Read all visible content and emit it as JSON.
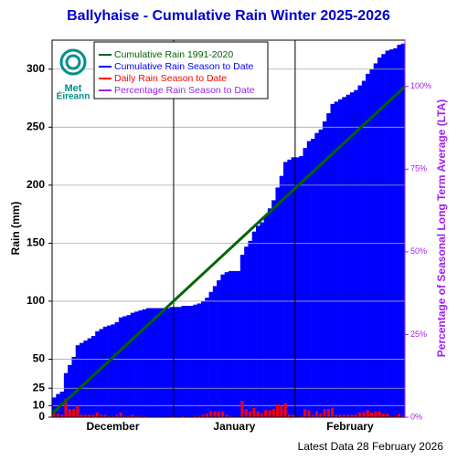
{
  "chart_data": {
    "type": "bar",
    "title": "Ballyhaise - Cumulative Rain Winter 2025-2026",
    "y_label": "Rain (mm)",
    "y2_label": "Percentage  of Seasonal Long Term Average (LTA)",
    "footer": "Latest Data 28 February 2026",
    "logo_text": [
      "Met",
      "Éireann"
    ],
    "xlim": [
      0,
      90
    ],
    "month_labels": [
      {
        "value": 15.5,
        "label": "December"
      },
      {
        "value": 46.5,
        "label": "January"
      },
      {
        "value": 76,
        "label": "February"
      }
    ],
    "month_separators": [
      31,
      62
    ],
    "ylim": [
      0,
      325
    ],
    "yticks": [
      0,
      10,
      25,
      50,
      100,
      150,
      200,
      250,
      300
    ],
    "y2lim": [
      0,
      114
    ],
    "y2ticks": [
      {
        "value": 0,
        "label": "0%"
      },
      {
        "value": 25,
        "label": "25%"
      },
      {
        "value": 50,
        "label": "50%"
      },
      {
        "value": 75,
        "label": "75%"
      },
      {
        "value": 100,
        "label": "100%"
      }
    ],
    "grid": true,
    "series": [
      {
        "name": "Cumulative Rain 1991-2020",
        "color": "#006400",
        "x": [
          0,
          90
        ],
        "values": [
          3,
          285
        ]
      },
      {
        "name": "Cumulative Rain Season to Date",
        "color": "#0000ff",
        "values": [
          17,
          20,
          22,
          38,
          45,
          52,
          62,
          64,
          66,
          68,
          70,
          74,
          76,
          78,
          79,
          80,
          82,
          86,
          87,
          88,
          90,
          91,
          92,
          93,
          94,
          94,
          94,
          94,
          94,
          94,
          95,
          95,
          95,
          96,
          96,
          96,
          97,
          98,
          100,
          103,
          108,
          113,
          118,
          123,
          125,
          126,
          126,
          126,
          140,
          147,
          152,
          160,
          165,
          168,
          174,
          180,
          187,
          198,
          208,
          220,
          222,
          224,
          224,
          225,
          232,
          238,
          240,
          245,
          248,
          255,
          262,
          270,
          272,
          274,
          276,
          278,
          280,
          282,
          286,
          290,
          296,
          300,
          305,
          310,
          313,
          316,
          317,
          318,
          321,
          322
        ]
      },
      {
        "name": "Daily Rain Season to Date",
        "color": "#ff0000",
        "values": [
          3,
          3,
          2,
          16,
          7,
          7,
          10,
          2,
          2,
          2,
          2,
          4,
          2,
          2,
          1,
          1,
          2,
          4,
          1,
          1,
          2,
          1,
          1,
          1,
          0,
          0,
          0,
          0,
          0,
          0,
          1,
          0,
          0,
          1,
          0,
          0,
          1,
          1,
          2,
          3,
          5,
          5,
          5,
          5,
          2,
          1,
          0,
          0,
          14,
          7,
          5,
          8,
          5,
          3,
          6,
          6,
          7,
          11,
          10,
          12,
          2,
          2,
          0,
          1,
          7,
          6,
          2,
          5,
          3,
          7,
          7,
          8,
          2,
          2,
          2,
          2,
          2,
          2,
          4,
          4,
          6,
          4,
          5,
          5,
          3,
          3,
          1,
          1,
          3,
          1
        ]
      },
      {
        "name": "Percentage Rain Season to Date",
        "color": "#a020f0"
      }
    ]
  }
}
